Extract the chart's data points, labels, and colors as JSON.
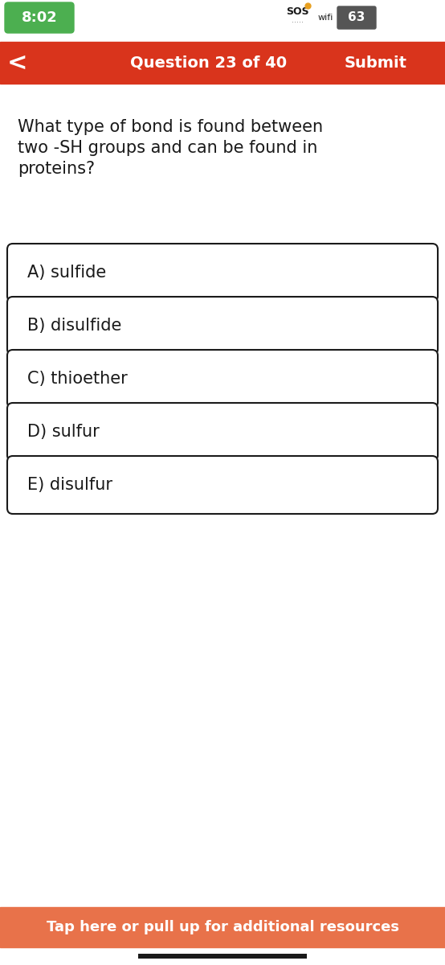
{
  "time": "8:02",
  "time_bg": "#4CAF50",
  "time_color": "#ffffff",
  "nav_bar_color": "#d9341c",
  "nav_text": "Question 23 of 40",
  "nav_submit": "Submit",
  "nav_back": "<",
  "question_line1": "What type of bond is found between",
  "question_line2": "two -SH groups and can be found in",
  "question_line3": "proteins?",
  "choices": [
    "A) sulfide",
    "B) disulfide",
    "C) thioether",
    "D) sulfur",
    "E) disulfur"
  ],
  "choice_bg": "#ffffff",
  "choice_border": "#1a1a1a",
  "choice_text_color": "#1a1a1a",
  "footer_text": "Tap here or pull up for additional resources",
  "footer_bg": "#e8724a",
  "footer_text_color": "#ffffff",
  "bg_color": "#ffffff",
  "question_fontsize": 15,
  "choice_fontsize": 15,
  "nav_fontsize": 14,
  "footer_fontsize": 13
}
